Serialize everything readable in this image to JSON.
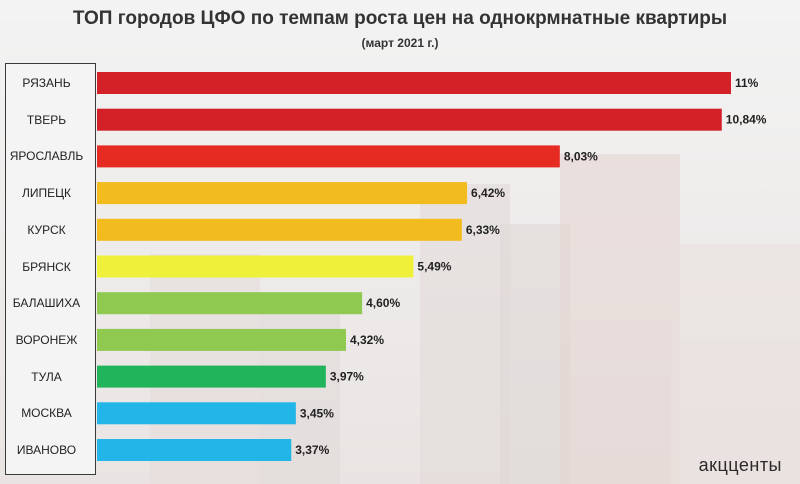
{
  "header": {
    "title": "ТОП городов ЦФО по темпам роста цен на однокрмнатные квартиры",
    "subtitle": "(март 2021 г.)"
  },
  "logo": {
    "text": "акцценты"
  },
  "chart_data": {
    "type": "bar",
    "orientation": "horizontal",
    "title": "ТОП городов ЦФО по темпам роста цен на однокрмнатные квартиры",
    "subtitle": "(март 2021 г.)",
    "categories": [
      "РЯЗАНЬ",
      "ТВЕРЬ",
      "ЯРОСЛАВЛЬ",
      "ЛИПЕЦК",
      "КУРСК",
      "БРЯНСК",
      "БАЛАШИХА",
      "ВОРОНЕЖ",
      "ТУЛА",
      "МОСКВА",
      "ИВАНОВО"
    ],
    "values": [
      11,
      10.84,
      8.03,
      6.42,
      6.33,
      5.49,
      4.6,
      4.32,
      3.97,
      3.45,
      3.37
    ],
    "value_labels": [
      "11%",
      "10,84%",
      "8,03%",
      "6,42%",
      "6,33%",
      "5,49%",
      "4,60%",
      "4,32%",
      "3,97%",
      "3,45%",
      "3,37%"
    ],
    "colors": [
      "#d42127",
      "#d42127",
      "#e52b22",
      "#f2bb1e",
      "#f2bb1e",
      "#eef03a",
      "#8fc94f",
      "#8fc94f",
      "#22b45a",
      "#22b5e8",
      "#22b5e8"
    ],
    "xlim": [
      0,
      11
    ],
    "grid": false,
    "legend": "none"
  }
}
